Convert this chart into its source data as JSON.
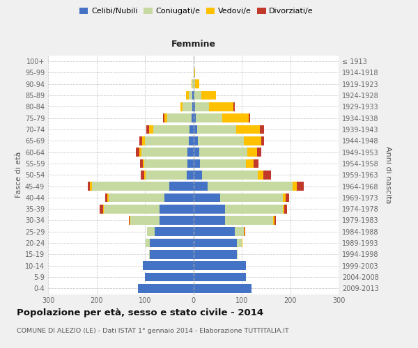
{
  "age_groups": [
    "0-4",
    "5-9",
    "10-14",
    "15-19",
    "20-24",
    "25-29",
    "30-34",
    "35-39",
    "40-44",
    "45-49",
    "50-54",
    "55-59",
    "60-64",
    "65-69",
    "70-74",
    "75-79",
    "80-84",
    "85-89",
    "90-94",
    "95-99",
    "100+"
  ],
  "birth_years": [
    "2009-2013",
    "2004-2008",
    "1999-2003",
    "1994-1998",
    "1989-1993",
    "1984-1988",
    "1979-1983",
    "1974-1978",
    "1969-1973",
    "1964-1968",
    "1959-1963",
    "1954-1958",
    "1949-1953",
    "1944-1948",
    "1939-1943",
    "1934-1938",
    "1929-1933",
    "1924-1928",
    "1919-1923",
    "1914-1918",
    "≤ 1913"
  ],
  "male": {
    "celibi": [
      115,
      100,
      105,
      90,
      90,
      80,
      70,
      70,
      60,
      50,
      14,
      12,
      12,
      10,
      8,
      4,
      2,
      2,
      0,
      0,
      0
    ],
    "coniugati": [
      0,
      0,
      0,
      2,
      8,
      15,
      60,
      115,
      115,
      160,
      85,
      90,
      95,
      90,
      75,
      50,
      20,
      8,
      2,
      0,
      0
    ],
    "vedovi": [
      0,
      0,
      0,
      0,
      1,
      1,
      1,
      2,
      2,
      3,
      2,
      3,
      5,
      6,
      8,
      6,
      5,
      5,
      2,
      0,
      0
    ],
    "divorziati": [
      0,
      0,
      0,
      0,
      0,
      0,
      2,
      6,
      5,
      5,
      8,
      5,
      6,
      6,
      6,
      2,
      0,
      0,
      0,
      0,
      0
    ]
  },
  "female": {
    "nubili": [
      120,
      108,
      108,
      90,
      90,
      85,
      65,
      65,
      55,
      30,
      18,
      14,
      12,
      10,
      8,
      5,
      3,
      2,
      0,
      0,
      0
    ],
    "coniugate": [
      0,
      0,
      0,
      2,
      10,
      20,
      100,
      120,
      130,
      175,
      115,
      95,
      100,
      95,
      80,
      55,
      30,
      15,
      4,
      2,
      0
    ],
    "vedove": [
      0,
      0,
      0,
      0,
      1,
      1,
      2,
      3,
      5,
      8,
      12,
      15,
      20,
      35,
      50,
      55,
      50,
      30,
      8,
      2,
      0
    ],
    "divorziate": [
      0,
      0,
      0,
      0,
      0,
      1,
      3,
      6,
      8,
      15,
      15,
      10,
      8,
      6,
      8,
      2,
      2,
      0,
      0,
      0,
      0
    ]
  },
  "colors": {
    "celibi": "#4472c4",
    "coniugati": "#c5d9a0",
    "vedovi": "#ffc000",
    "divorziati": "#c0392b"
  },
  "xlim": 300,
  "title": "Popolazione per età, sesso e stato civile - 2014",
  "subtitle": "COMUNE DI ALEZIO (LE) - Dati ISTAT 1° gennaio 2014 - Elaborazione TUTTITALIA.IT",
  "ylabel_left": "Fasce di età",
  "ylabel_right": "Anni di nascita",
  "xlabel_right": "Femmine",
  "bg_color": "#f0f0f0",
  "plot_bg": "#ffffff"
}
